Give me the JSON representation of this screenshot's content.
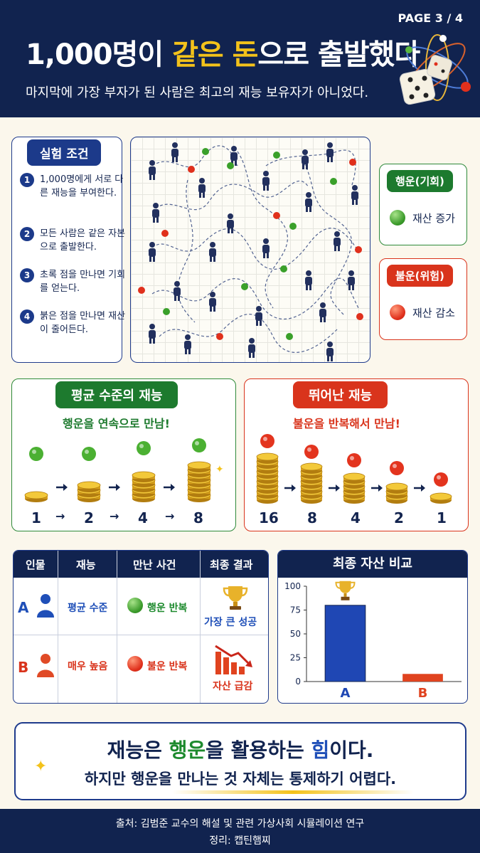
{
  "header": {
    "page": "PAGE 3 / 4",
    "title_part1": "1,000명이 ",
    "title_highlight1": "같은",
    "title_space": " ",
    "title_highlight2": "돈",
    "title_part2": "으로 출발했다",
    "subtitle": "마지막에 가장 부자가 된 사람은 최고의 재능 보유자가 아니었다."
  },
  "conditions": {
    "title": "실험 조건",
    "items": [
      {
        "num": "1",
        "text": "1,000명에게 서로 다른 재능을 부여한다."
      },
      {
        "num": "2",
        "text": "모든 사람은 같은 자본으로 출발한다."
      },
      {
        "num": "3",
        "text": "초록 점을 만나면 기회를 얻는다."
      },
      {
        "num": "4",
        "text": "붉은 점을 만나면 재산이 줄어든다."
      }
    ]
  },
  "legend": {
    "luck_title": "행운(기회)",
    "luck_label": "재산 증가",
    "unluck_title": "불운(위험)",
    "unluck_label": "재산 감소"
  },
  "average": {
    "title": "평균 수준의 재능",
    "subtitle": "행운을 연속으로 만남!",
    "values": [
      "1",
      "2",
      "4",
      "8"
    ],
    "arrow": "→"
  },
  "talented": {
    "title": "뛰어난 재능",
    "subtitle": "불운을 반복해서 만남!",
    "values": [
      "16",
      "8",
      "4",
      "2",
      "1"
    ]
  },
  "table": {
    "headers": [
      "인물",
      "재능",
      "만난 사건",
      "최종 결과"
    ],
    "rows": [
      {
        "person": "A",
        "talent": "평균 수준",
        "event": "행운 반복",
        "result": "가장 큰 성공"
      },
      {
        "person": "B",
        "talent": "매우 높음",
        "event": "불운 반복",
        "result": "자산 급감"
      }
    ]
  },
  "chart_data": {
    "type": "bar",
    "title": "최종 자산 비교",
    "categories": [
      "A",
      "B"
    ],
    "values": [
      80,
      8
    ],
    "yticks": [
      "0",
      "25",
      "50",
      "75",
      "100"
    ],
    "ylim": [
      0,
      100
    ],
    "colors": [
      "#1f47b4",
      "#e0431f"
    ],
    "grid": false
  },
  "conclusion": {
    "line1_a": "재능은 ",
    "line1_b": "행운",
    "line1_c": "을 활용하는 ",
    "line1_d": "힘",
    "line1_e": "이다.",
    "line2": "하지만 행운을 만나는 것 자체는 통제하기 어렵다."
  },
  "footer": {
    "source": "출처: 김범준 교수의 해설 및 관련 가상사회 시뮬레이션 연구",
    "credit": "정리: 캡틴햄찌"
  },
  "colors": {
    "navy": "#11234f",
    "green": "#1d8a2d",
    "red": "#d9341c",
    "gold": "#f3c21b"
  }
}
